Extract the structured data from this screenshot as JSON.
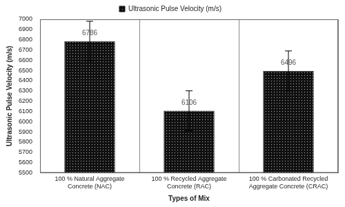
{
  "chart_data": {
    "type": "bar",
    "x_label": "Types of Mix",
    "y_label": "Ultrasonic Pulse Velocity (m/s)",
    "categories": [
      "100 % Natural Aggregate Concrete (NAC)",
      "100 % Recycled Aggregate Concrete (RAC)",
      "100 % Carbonated Recycled Aggregate Concrete (CRAC)"
    ],
    "series": [
      {
        "name": "Ultrasonic Pulse Velocity (m/s)",
        "color": "#111111",
        "values": [
          6786,
          6106,
          6496
        ],
        "errors": [
          195,
          195,
          195
        ]
      }
    ],
    "ylim": [
      5500,
      7000
    ],
    "yticks": [
      5500,
      5600,
      5700,
      5800,
      5900,
      6000,
      6100,
      6200,
      6300,
      6400,
      6500,
      6600,
      6700,
      6800,
      6900,
      7000
    ],
    "grid": "x",
    "legend": "top",
    "data_labels": true
  }
}
